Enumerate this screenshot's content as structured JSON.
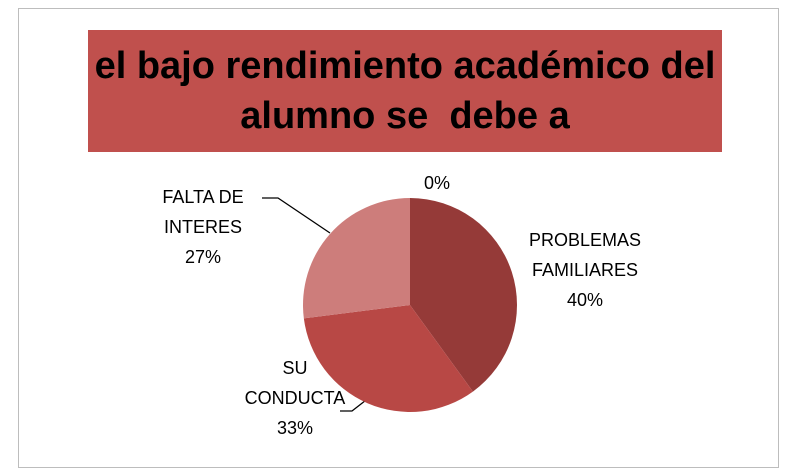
{
  "chart_data": {
    "type": "pie",
    "title": "el bajo rendimiento académico del alumno se  debe a",
    "categories": [
      "PROBLEMAS FAMILIARES",
      "SU CONDUCTA",
      "FALTA DE INTERES",
      null
    ],
    "values": [
      40,
      33,
      27,
      0
    ],
    "value_labels": [
      "40%",
      "33%",
      "27%",
      "0%"
    ],
    "colors": [
      "#953a38",
      "#b84845",
      "#cd7d7b",
      "#e3a9a8"
    ]
  }
}
